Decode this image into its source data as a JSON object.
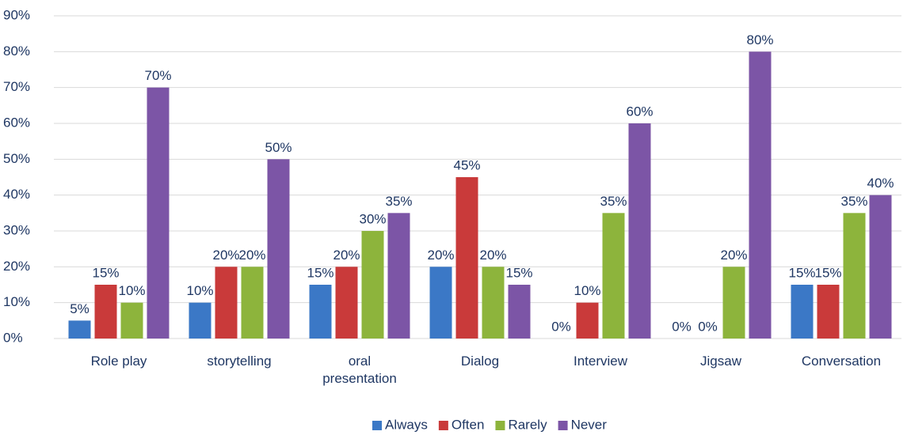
{
  "chart_data": {
    "type": "bar",
    "categories": [
      "Role play",
      "storytelling",
      "oral presentation",
      "Dialog",
      "Interview",
      "Jigsaw",
      "Conversation"
    ],
    "series": [
      {
        "name": "Always",
        "color": "#3b78c6",
        "values": [
          5,
          10,
          15,
          20,
          0,
          0,
          15
        ],
        "value_labels": [
          "5%",
          "10%",
          "15%",
          "20%",
          "0%",
          "0%",
          "15%"
        ]
      },
      {
        "name": "Often",
        "color": "#c93a3a",
        "values": [
          15,
          20,
          20,
          45,
          10,
          0,
          15
        ],
        "value_labels": [
          "15%",
          "20%",
          "20%",
          "45%",
          "10%",
          "0%",
          "15%"
        ]
      },
      {
        "name": "Rarely",
        "color": "#8db43c",
        "values": [
          10,
          20,
          30,
          20,
          35,
          20,
          35
        ],
        "value_labels": [
          "10%",
          "20%",
          "30%",
          "20%",
          "35%",
          "20%",
          "35%"
        ]
      },
      {
        "name": "Never",
        "color": "#7c55a6",
        "values": [
          70,
          50,
          35,
          15,
          60,
          80,
          40
        ],
        "value_labels": [
          "70%",
          "50%",
          "35%",
          "15%",
          "60%",
          "80%",
          "40%"
        ]
      }
    ],
    "ylim": [
      0,
      90
    ],
    "yticks": [
      {
        "value": 0,
        "label": "0%"
      },
      {
        "value": 10,
        "label": "10%"
      },
      {
        "value": 20,
        "label": "20%"
      },
      {
        "value": 30,
        "label": "30%"
      },
      {
        "value": 40,
        "label": "40%"
      },
      {
        "value": 50,
        "label": "50%"
      },
      {
        "value": 60,
        "label": "60%"
      },
      {
        "value": 70,
        "label": "70%"
      },
      {
        "value": 80,
        "label": "80%"
      },
      {
        "value": 90,
        "label": "90%"
      }
    ],
    "grid": true,
    "legend": "bottom"
  }
}
